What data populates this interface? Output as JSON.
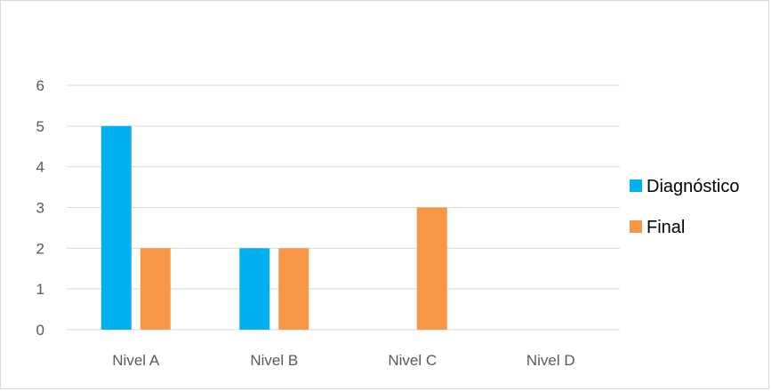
{
  "chart_data": {
    "type": "bar",
    "title": "",
    "xlabel": "",
    "ylabel": "",
    "categories": [
      "Nivel A",
      "Nivel B",
      "Nivel C",
      "Nivel D"
    ],
    "series": [
      {
        "name": "Diagnóstico",
        "color": "#00b0f0",
        "values": [
          5,
          2,
          0,
          0
        ]
      },
      {
        "name": "Final",
        "color": "#f79646",
        "values": [
          2,
          2,
          3,
          0
        ]
      }
    ],
    "ylim": [
      0,
      6
    ],
    "yticks": [
      0,
      1,
      2,
      3,
      4,
      5,
      6
    ],
    "grid": true,
    "legend_position": "right"
  }
}
